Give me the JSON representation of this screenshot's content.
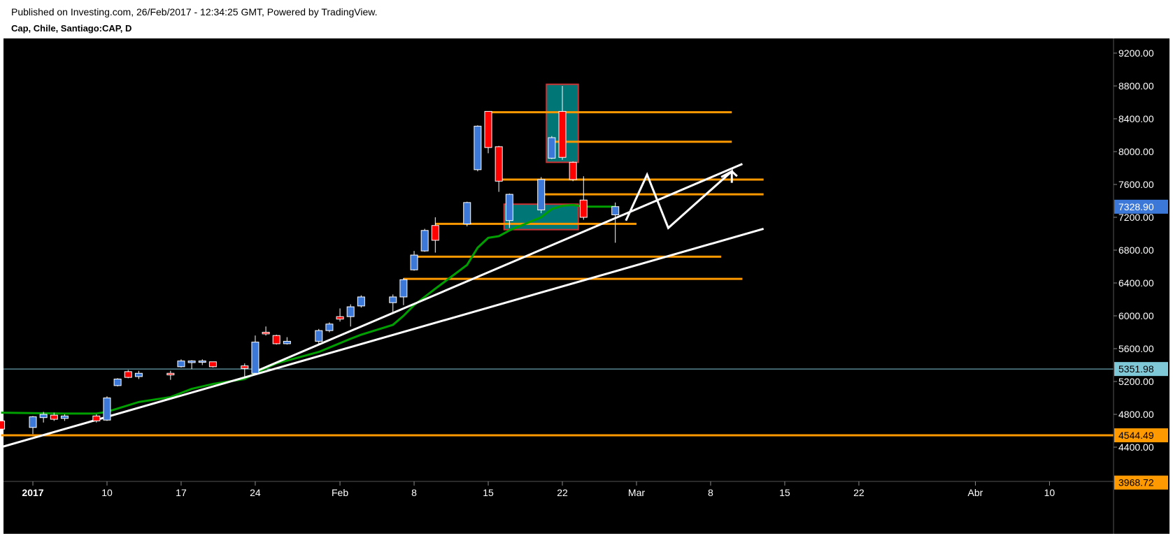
{
  "header": {
    "published": "Published on Investing.com, 26/Feb/2017 - 12:34:25 GMT, Powered by TradingView.",
    "symbol": "Cap, Chile, Santiago:CAP, D"
  },
  "colors": {
    "background": "#000000",
    "up_candle": "#3c78d8",
    "down_candle": "#ff0000",
    "ema": "#00a000",
    "support_resistance": "#ff9900",
    "trendline": "#ffffff",
    "zone_fill": "#008080",
    "zone_border": "#cc3333",
    "last_price_bg": "#3c78d8",
    "marker_price_bg": "#7fc8d8"
  },
  "chart_data": {
    "type": "candlestick",
    "title": "Cap, Chile, Santiago:CAP, D",
    "ylim": [
      3968.72,
      9400
    ],
    "y_ticks": [
      "9200.00",
      "8800.00",
      "8400.00",
      "8000.00",
      "7600.00",
      "7200.00",
      "6800.00",
      "6400.00",
      "6000.00",
      "5600.00",
      "5200.00",
      "4800.00",
      "4400.00"
    ],
    "x_ticks": [
      {
        "label": "2017",
        "day": 0,
        "bold": true
      },
      {
        "label": "10",
        "day": 7
      },
      {
        "label": "17",
        "day": 14
      },
      {
        "label": "24",
        "day": 21
      },
      {
        "label": "Feb",
        "day": 29
      },
      {
        "label": "8",
        "day": 36
      },
      {
        "label": "15",
        "day": 43
      },
      {
        "label": "22",
        "day": 50
      },
      {
        "label": "Mar",
        "day": 57
      },
      {
        "label": "8",
        "day": 64
      },
      {
        "label": "15",
        "day": 71
      },
      {
        "label": "22",
        "day": 78
      },
      {
        "label": "Abr",
        "day": 89
      },
      {
        "label": "10",
        "day": 96
      }
    ],
    "candles": [
      {
        "day": -3,
        "o": 4720,
        "h": 4760,
        "l": 4600,
        "c": 4620
      },
      {
        "day": 0,
        "o": 4640,
        "h": 4780,
        "l": 4560,
        "c": 4770
      },
      {
        "day": 1,
        "o": 4760,
        "h": 4830,
        "l": 4700,
        "c": 4800
      },
      {
        "day": 2,
        "o": 4790,
        "h": 4820,
        "l": 4720,
        "c": 4740
      },
      {
        "day": 3,
        "o": 4750,
        "h": 4800,
        "l": 4720,
        "c": 4780
      },
      {
        "day": 6,
        "o": 4780,
        "h": 4800,
        "l": 4700,
        "c": 4720
      },
      {
        "day": 7,
        "o": 4730,
        "h": 5020,
        "l": 4720,
        "c": 5000
      },
      {
        "day": 8,
        "o": 5150,
        "h": 5240,
        "l": 5140,
        "c": 5230
      },
      {
        "day": 9,
        "o": 5320,
        "h": 5340,
        "l": 5240,
        "c": 5250
      },
      {
        "day": 10,
        "o": 5260,
        "h": 5330,
        "l": 5230,
        "c": 5300
      },
      {
        "day": 13,
        "o": 5300,
        "h": 5330,
        "l": 5220,
        "c": 5280
      },
      {
        "day": 14,
        "o": 5380,
        "h": 5470,
        "l": 5370,
        "c": 5450
      },
      {
        "day": 15,
        "o": 5430,
        "h": 5460,
        "l": 5350,
        "c": 5450
      },
      {
        "day": 16,
        "o": 5440,
        "h": 5470,
        "l": 5400,
        "c": 5450
      },
      {
        "day": 17,
        "o": 5440,
        "h": 5440,
        "l": 5370,
        "c": 5380
      },
      {
        "day": 20,
        "o": 5390,
        "h": 5420,
        "l": 5240,
        "c": 5360
      },
      {
        "day": 21,
        "o": 5300,
        "h": 5760,
        "l": 5290,
        "c": 5680
      },
      {
        "day": 22,
        "o": 5800,
        "h": 5870,
        "l": 5760,
        "c": 5780
      },
      {
        "day": 23,
        "o": 5760,
        "h": 5770,
        "l": 5650,
        "c": 5660
      },
      {
        "day": 24,
        "o": 5660,
        "h": 5740,
        "l": 5650,
        "c": 5690
      },
      {
        "day": 27,
        "o": 5690,
        "h": 5840,
        "l": 5660,
        "c": 5820
      },
      {
        "day": 28,
        "o": 5820,
        "h": 5920,
        "l": 5800,
        "c": 5900
      },
      {
        "day": 29,
        "o": 5990,
        "h": 6090,
        "l": 5930,
        "c": 5960
      },
      {
        "day": 30,
        "o": 5990,
        "h": 6140,
        "l": 5870,
        "c": 6110
      },
      {
        "day": 31,
        "o": 6120,
        "h": 6250,
        "l": 6100,
        "c": 6230
      },
      {
        "day": 34,
        "o": 6160,
        "h": 6260,
        "l": 6040,
        "c": 6230
      },
      {
        "day": 35,
        "o": 6230,
        "h": 6460,
        "l": 6130,
        "c": 6440
      },
      {
        "day": 36,
        "o": 6560,
        "h": 6790,
        "l": 6550,
        "c": 6740
      },
      {
        "day": 37,
        "o": 6790,
        "h": 7060,
        "l": 6780,
        "c": 7040
      },
      {
        "day": 38,
        "o": 7100,
        "h": 7200,
        "l": 6770,
        "c": 6920
      },
      {
        "day": 41,
        "o": 7120,
        "h": 7390,
        "l": 7090,
        "c": 7380
      },
      {
        "day": 42,
        "o": 7780,
        "h": 8320,
        "l": 7760,
        "c": 8310
      },
      {
        "day": 43,
        "o": 8490,
        "h": 8490,
        "l": 7980,
        "c": 8050
      },
      {
        "day": 44,
        "o": 8060,
        "h": 8070,
        "l": 7510,
        "c": 7640
      },
      {
        "day": 45,
        "o": 7160,
        "h": 7490,
        "l": 7070,
        "c": 7480
      },
      {
        "day": 48,
        "o": 7290,
        "h": 7690,
        "l": 7250,
        "c": 7660
      },
      {
        "day": 49,
        "o": 7920,
        "h": 8190,
        "l": 7910,
        "c": 8170
      },
      {
        "day": 50,
        "o": 8490,
        "h": 8800,
        "l": 7900,
        "c": 7930
      },
      {
        "day": 51,
        "o": 7870,
        "h": 7880,
        "l": 7640,
        "c": 7660
      },
      {
        "day": 52,
        "o": 7410,
        "h": 7700,
        "l": 7170,
        "c": 7200
      },
      {
        "day": 55,
        "o": 7230,
        "h": 7380,
        "l": 6890,
        "c": 7330
      }
    ],
    "ema": [
      {
        "day": -3,
        "v": 4820
      },
      {
        "day": 3,
        "v": 4810
      },
      {
        "day": 6,
        "v": 4810
      },
      {
        "day": 7,
        "v": 4830
      },
      {
        "day": 10,
        "v": 4950
      },
      {
        "day": 13,
        "v": 5010
      },
      {
        "day": 15,
        "v": 5110
      },
      {
        "day": 17,
        "v": 5170
      },
      {
        "day": 20,
        "v": 5230
      },
      {
        "day": 21,
        "v": 5300
      },
      {
        "day": 23,
        "v": 5420
      },
      {
        "day": 27,
        "v": 5560
      },
      {
        "day": 30,
        "v": 5720
      },
      {
        "day": 31,
        "v": 5770
      },
      {
        "day": 34,
        "v": 5890
      },
      {
        "day": 35,
        "v": 6000
      },
      {
        "day": 36,
        "v": 6130
      },
      {
        "day": 37,
        "v": 6230
      },
      {
        "day": 38,
        "v": 6330
      },
      {
        "day": 41,
        "v": 6620
      },
      {
        "day": 42,
        "v": 6830
      },
      {
        "day": 43,
        "v": 6950
      },
      {
        "day": 44,
        "v": 6970
      },
      {
        "day": 45,
        "v": 7040
      },
      {
        "day": 48,
        "v": 7200
      },
      {
        "day": 49,
        "v": 7300
      },
      {
        "day": 50,
        "v": 7340
      },
      {
        "day": 51,
        "v": 7350
      },
      {
        "day": 52,
        "v": 7330
      },
      {
        "day": 55,
        "v": 7330
      }
    ],
    "horizontal_lines": [
      {
        "from": 43,
        "to": 66,
        "price": 8480
      },
      {
        "from": 49,
        "to": 66,
        "price": 8120
      },
      {
        "from": 44,
        "to": 69,
        "price": 7660
      },
      {
        "from": 48,
        "to": 69,
        "price": 7480
      },
      {
        "from": 38,
        "to": 57,
        "price": 7120
      },
      {
        "from": 36,
        "to": 65,
        "price": 6720
      },
      {
        "from": 35,
        "to": 67,
        "price": 6450
      },
      {
        "from": -3,
        "to": 103,
        "price": 4544.49
      }
    ],
    "trendlines": [
      {
        "from": {
          "day": 21,
          "price": 5320
        },
        "to": {
          "day": 67,
          "price": 7850
        }
      },
      {
        "from": {
          "day": -3,
          "price": 4400
        },
        "to": {
          "day": 69,
          "price": 7060
        }
      }
    ],
    "projection": [
      {
        "day": 56,
        "price": 7160
      },
      {
        "day": 58,
        "price": 7720
      },
      {
        "day": 60,
        "price": 7070
      },
      {
        "day": 66,
        "price": 7760
      },
      {
        "day": 66,
        "price": 7620
      }
    ],
    "projection_arrow": [
      {
        "day": 65,
        "price": 7690
      },
      {
        "day": 66,
        "price": 7760
      },
      {
        "day": 66.5,
        "price": 7700
      }
    ],
    "zones": [
      {
        "from": 48.5,
        "to": 51.5,
        "low": 7870,
        "high": 8820
      },
      {
        "from": 44.5,
        "to": 51.5,
        "low": 7050,
        "high": 7360
      }
    ],
    "marker_line_price": 5351.98,
    "price_labels": [
      {
        "price": 7328.9,
        "text": "7328.90",
        "kind": "last"
      },
      {
        "price": 5351.98,
        "text": "5351.98",
        "kind": "marker"
      },
      {
        "price": 4544.49,
        "text": "4544.49",
        "kind": "support"
      },
      {
        "price": 3968.72,
        "text": "3968.72",
        "kind": "support"
      }
    ]
  }
}
